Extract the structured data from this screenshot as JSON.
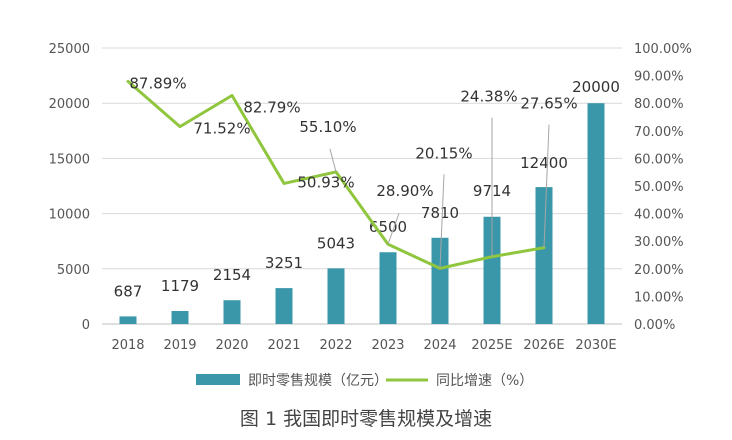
{
  "caption": "图 1  我国即时零售规模及增速",
  "colors": {
    "bar": "#3a97a9",
    "line": "#8fc63d",
    "grid": "#d9d9d9",
    "axis": "#bfbfbf"
  },
  "chart_data": {
    "type": "bar",
    "categories": [
      "2018",
      "2019",
      "2020",
      "2021",
      "2022",
      "2023",
      "2024",
      "2025E",
      "2026E",
      "2030E"
    ],
    "series": [
      {
        "name": "即时零售规模（亿元）",
        "type": "bar",
        "axis": "left",
        "values": [
          687,
          1179,
          2154,
          3251,
          5043,
          6500,
          7810,
          9714,
          12400,
          20000
        ],
        "labels": [
          "687",
          "1179",
          "2154",
          "3251",
          "5043",
          "6500",
          "7810",
          "9714",
          "12400",
          "20000"
        ]
      },
      {
        "name": "同比增速（%）",
        "type": "line",
        "axis": "right",
        "values": [
          87.89,
          71.52,
          82.79,
          50.93,
          55.1,
          28.9,
          20.15,
          24.38,
          27.65,
          null
        ],
        "labels": [
          "87.89%",
          "71.52%",
          "82.79%",
          "50.93%",
          "55.10%",
          "28.90%",
          "20.15%",
          "24.38%",
          "27.65%",
          ""
        ]
      }
    ],
    "y_left": {
      "min": 0,
      "max": 25000,
      "ticks": [
        "0",
        "5000",
        "10000",
        "15000",
        "20000",
        "25000"
      ]
    },
    "y_right": {
      "min": 0,
      "max": 100,
      "ticks": [
        "0.00%",
        "10.00%",
        "20.00%",
        "30.00%",
        "40.00%",
        "50.00%",
        "60.00%",
        "70.00%",
        "80.00%",
        "90.00%",
        "100.00%"
      ]
    },
    "grid": true,
    "legend": "bottom"
  }
}
